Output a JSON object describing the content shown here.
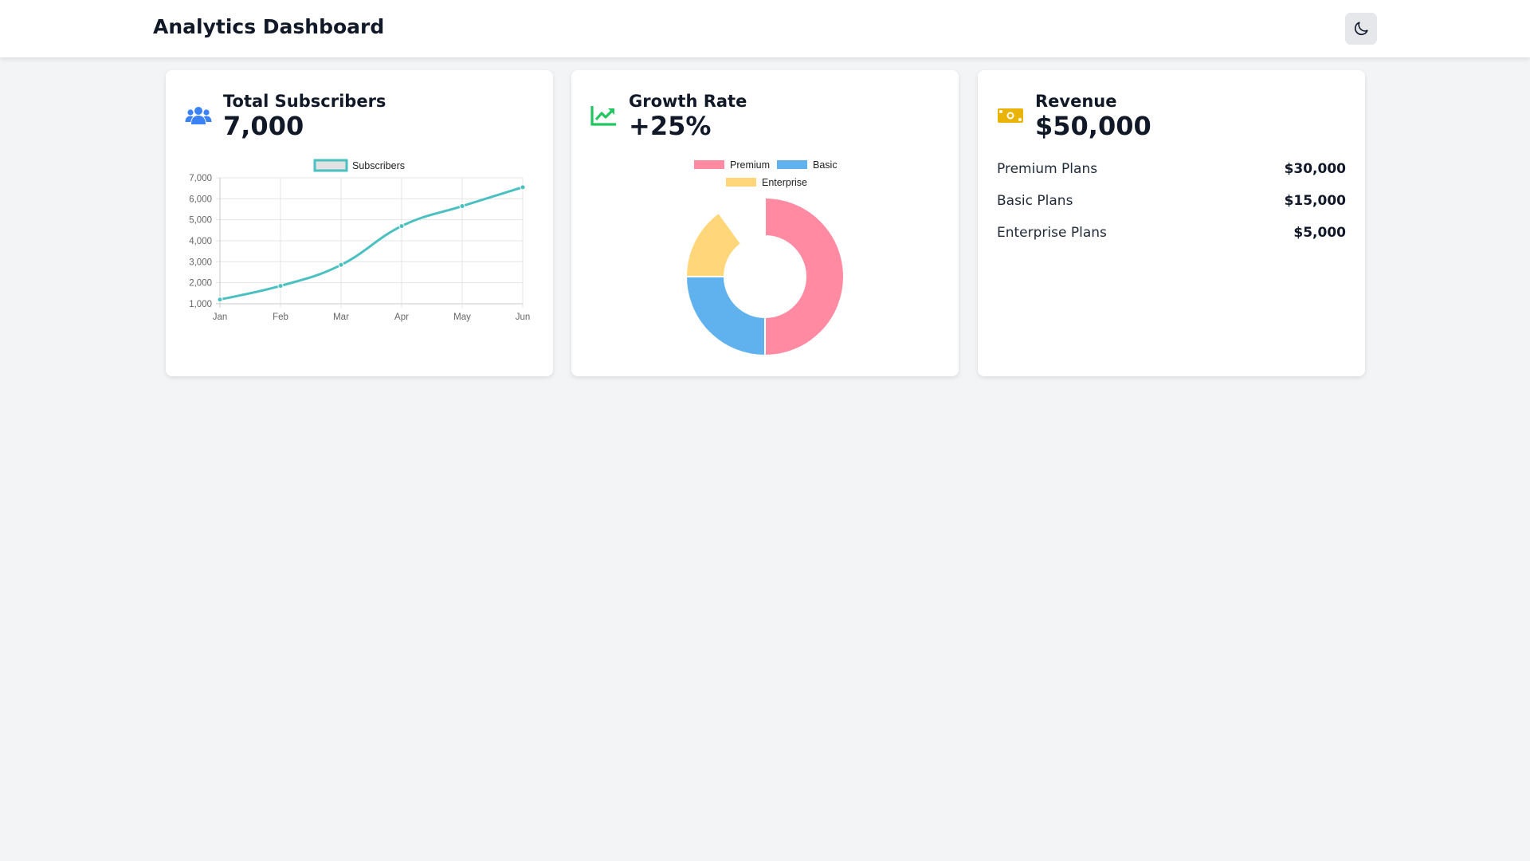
{
  "header": {
    "title": "Analytics Dashboard",
    "theme_icon": "moon-icon"
  },
  "cards": {
    "subscribers": {
      "label": "Total Subscribers",
      "value": "7,000",
      "icon": "users-icon",
      "icon_color": "#3b82f6"
    },
    "growth": {
      "label": "Growth Rate",
      "value": "+25%",
      "icon": "trend-up-icon",
      "icon_color": "#22c55e"
    },
    "revenue": {
      "label": "Revenue",
      "value": "$50,000",
      "icon": "money-bill-icon",
      "icon_color": "#eab308",
      "items": [
        {
          "name": "Premium Plans",
          "amount": "$30,000"
        },
        {
          "name": "Basic Plans",
          "amount": "$15,000"
        },
        {
          "name": "Enterprise Plans",
          "amount": "$5,000"
        }
      ]
    }
  },
  "chart_data": [
    {
      "type": "line",
      "categories": [
        "Jan",
        "Feb",
        "Mar",
        "Apr",
        "May",
        "Jun"
      ],
      "series": [
        {
          "name": "Subscribers",
          "values": [
            1200,
            1850,
            2850,
            4700,
            5650,
            6550
          ],
          "color": "#4bc0c0"
        }
      ],
      "ylim": [
        1000,
        7000
      ],
      "yticks": [
        "1,000",
        "2,000",
        "3,000",
        "4,000",
        "5,000",
        "6,000",
        "7,000"
      ],
      "grid": true,
      "legend": "top"
    },
    {
      "type": "pie",
      "variant": "doughnut",
      "categories": [
        "Premium",
        "Basic",
        "Enterprise"
      ],
      "values": [
        50,
        25,
        15
      ],
      "colors": [
        "#ff8aa2",
        "#60b2ef",
        "#ffd77a"
      ],
      "legend": "top"
    }
  ]
}
